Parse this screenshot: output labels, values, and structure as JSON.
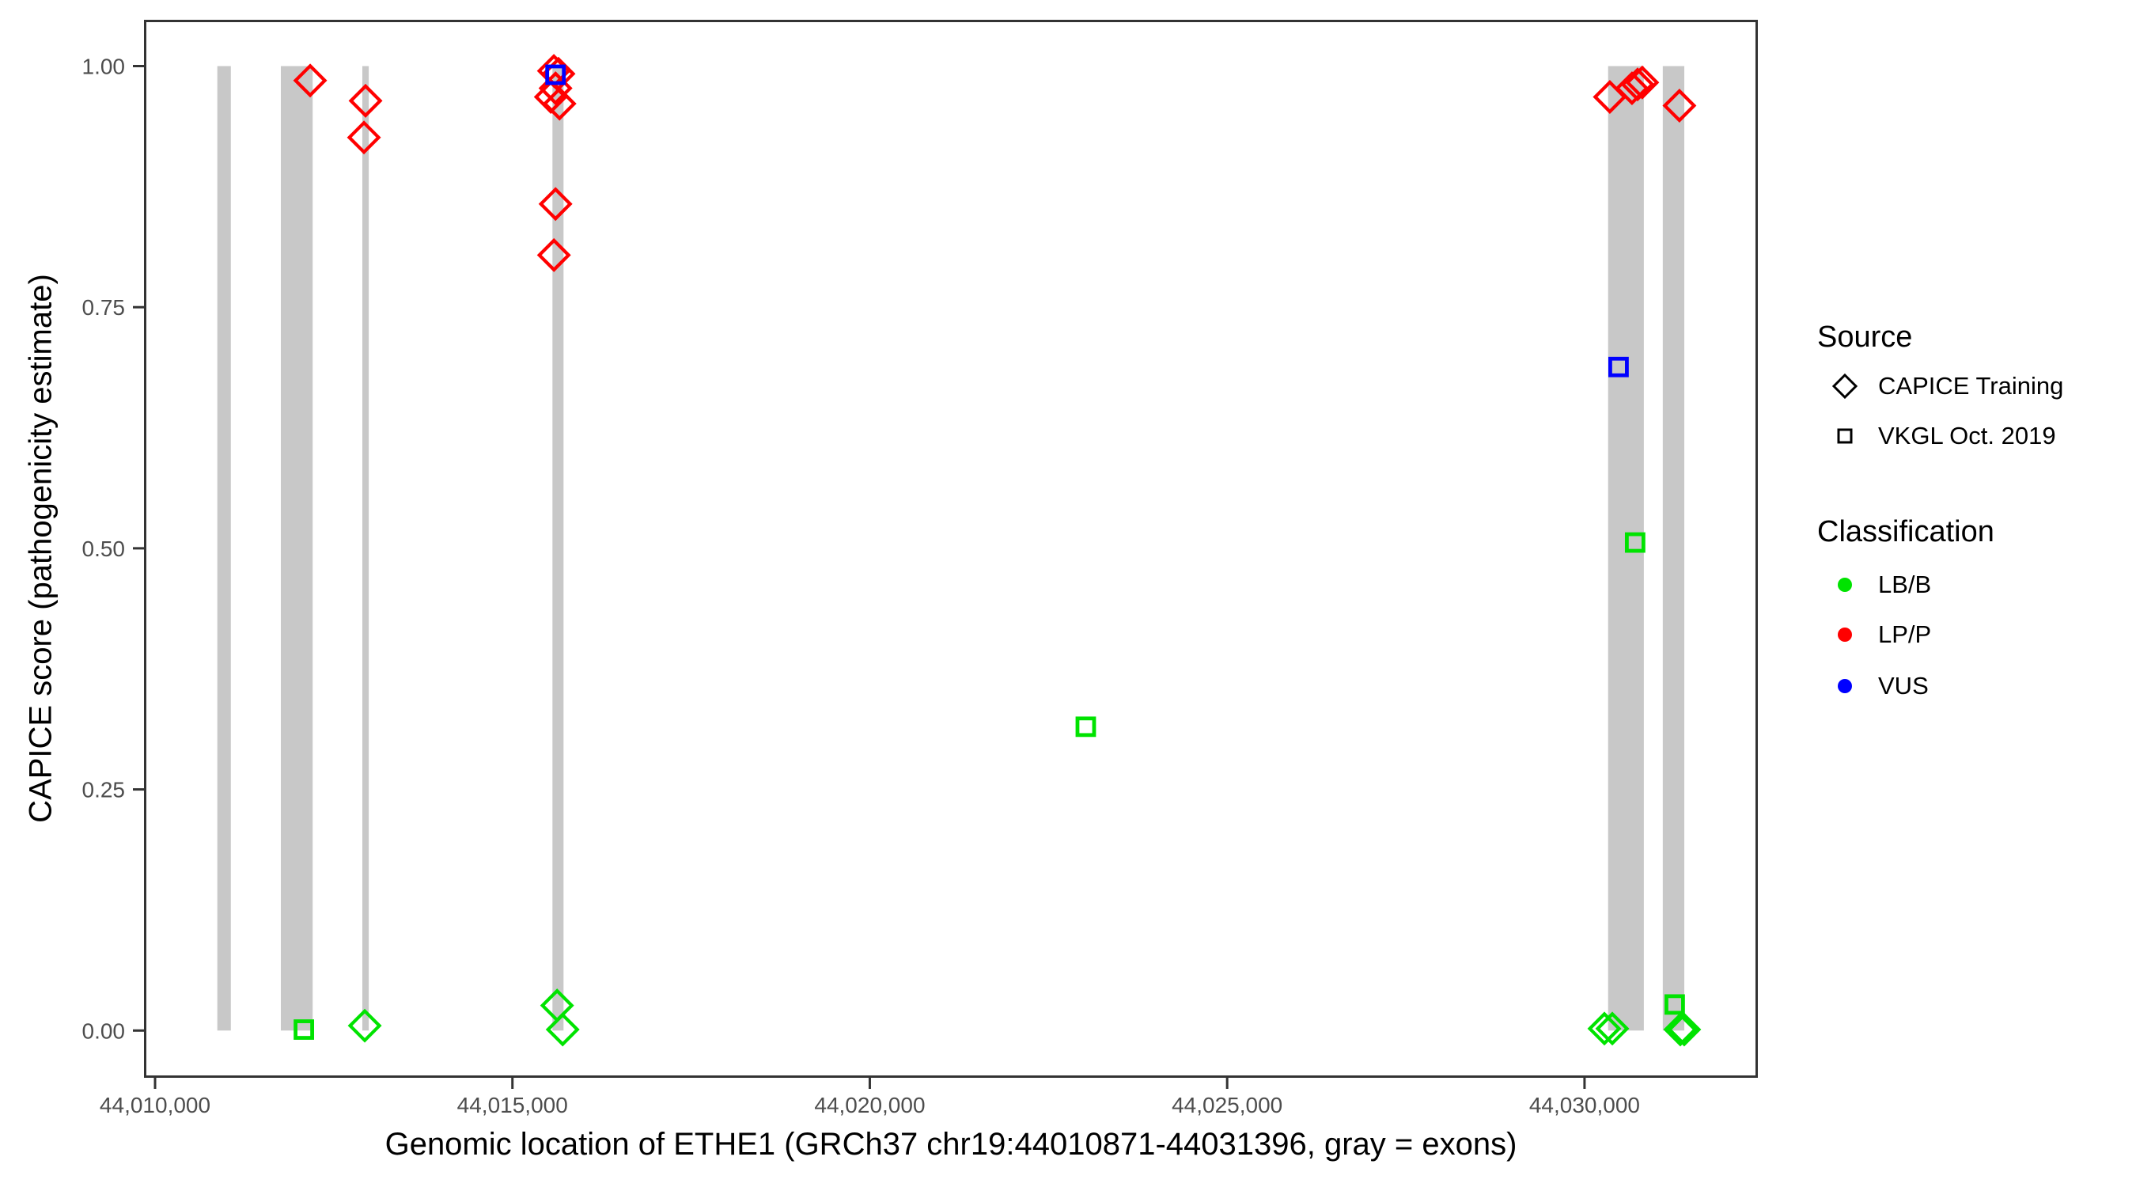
{
  "colors": {
    "exon": "#C8C8C8",
    "panel_border": "#333333",
    "axis_tick": "#333333",
    "axis_text": "#4D4D4D",
    "lbb": "#00E300",
    "lpp": "#FF0000",
    "vus": "#0000FF",
    "legend_symbol": "#000000"
  },
  "chart_data": {
    "type": "scatter",
    "title": "",
    "xlabel": "Genomic location of ETHE1 (GRCh37 chr19:44010871-44031396, gray = exons)",
    "ylabel": "CAPICE score (pathogenicity estimate)",
    "xlim": [
      44009845,
      44032425
    ],
    "ylim": [
      -0.049,
      1.048
    ],
    "grid": "off",
    "legend_position": "right",
    "x_ticks": [
      {
        "value": 44010000,
        "label": "44,010,000"
      },
      {
        "value": 44015000,
        "label": "44,015,000"
      },
      {
        "value": 44020000,
        "label": "44,020,000"
      },
      {
        "value": 44025000,
        "label": "44,025,000"
      },
      {
        "value": 44030000,
        "label": "44,030,000"
      }
    ],
    "y_ticks": [
      {
        "value": 0.0,
        "label": "0.00"
      },
      {
        "value": 0.25,
        "label": "0.25"
      },
      {
        "value": 0.5,
        "label": "0.50"
      },
      {
        "value": 0.75,
        "label": "0.75"
      },
      {
        "value": 1.0,
        "label": "1.00"
      }
    ],
    "exons_gray_bars_y_span": [
      0,
      1
    ],
    "exons": [
      [
        44010871,
        44011060
      ],
      [
        44011760,
        44012205
      ],
      [
        44012900,
        44012990
      ],
      [
        44015560,
        44015715
      ],
      [
        44030330,
        44030830
      ],
      [
        44031095,
        44031396
      ]
    ],
    "series": [
      {
        "name": "CAPICE Training / LP-P",
        "source": "CAPICE Training",
        "classification": "LP/P",
        "shape": "open-diamond",
        "color": "#FF0000",
        "points": [
          [
            44012170,
            0.985
          ],
          [
            44012945,
            0.964
          ],
          [
            44012923,
            0.926
          ],
          [
            44015580,
            0.995
          ],
          [
            44015645,
            0.992
          ],
          [
            44015603,
            0.977
          ],
          [
            44015537,
            0.968
          ],
          [
            44015659,
            0.961
          ],
          [
            44015603,
            0.857
          ],
          [
            44015581,
            0.804
          ],
          [
            44030354,
            0.968
          ],
          [
            44030664,
            0.977
          ],
          [
            44030742,
            0.981
          ],
          [
            44030808,
            0.983
          ],
          [
            44031328,
            0.959
          ]
        ]
      },
      {
        "name": "CAPICE Training / LB-B",
        "source": "CAPICE Training",
        "classification": "LB/B",
        "shape": "open-diamond",
        "color": "#00E300",
        "points": [
          [
            44012934,
            0.005
          ],
          [
            44015625,
            0.026
          ],
          [
            44015703,
            0.001
          ],
          [
            44030278,
            0.002
          ],
          [
            44030389,
            0.002
          ],
          [
            44031340,
            0.001
          ],
          [
            44031395,
            0.001
          ]
        ]
      },
      {
        "name": "VKGL Oct. 2019 / LB-B",
        "source": "VKGL Oct. 2019",
        "classification": "LB/B",
        "shape": "open-square",
        "color": "#00E300",
        "points": [
          [
            44012082,
            0.001
          ],
          [
            44023022,
            0.315
          ],
          [
            44030708,
            0.506
          ],
          [
            44031262,
            0.027
          ]
        ]
      },
      {
        "name": "VKGL Oct. 2019 / VUS",
        "source": "VKGL Oct. 2019",
        "classification": "VUS",
        "shape": "open-square",
        "color": "#0000FF",
        "points": [
          [
            44015603,
            0.991
          ],
          [
            44030476,
            0.688
          ]
        ]
      }
    ]
  },
  "legend": {
    "source": {
      "title": "Source",
      "items": [
        {
          "label": "CAPICE Training",
          "shape": "open-diamond"
        },
        {
          "label": "VKGL Oct. 2019",
          "shape": "open-square"
        }
      ]
    },
    "classification": {
      "title": "Classification",
      "items": [
        {
          "label": "LB/B",
          "color": "#00E300"
        },
        {
          "label": "LP/P",
          "color": "#FF0000"
        },
        {
          "label": "VUS",
          "color": "#0000FF"
        }
      ]
    }
  }
}
